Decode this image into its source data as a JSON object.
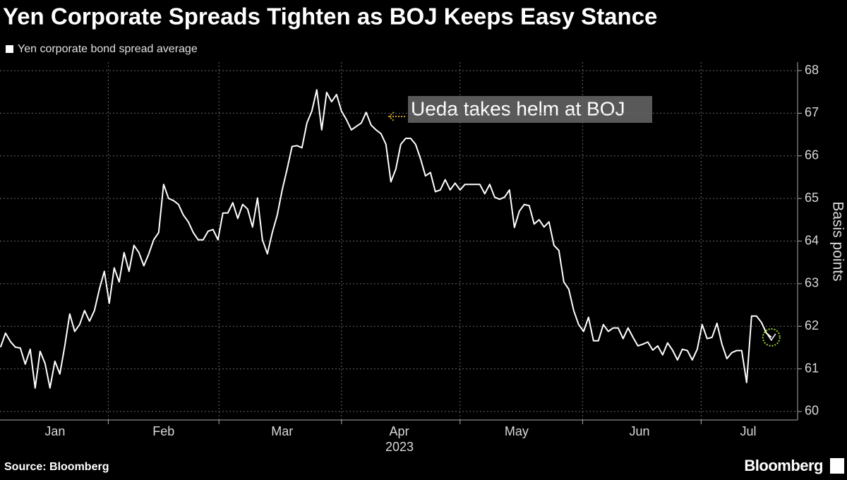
{
  "chart_data": {
    "type": "line",
    "title": "Yen Corporate Spreads Tighten as BOJ Keeps Easy Stance",
    "y_label": "Basis points",
    "x_label": "2023",
    "source": "Source: Bloomberg",
    "brand": "Bloomberg",
    "annotation": "Ueda takes helm at BOJ",
    "legend": "top-left",
    "grid": true,
    "xlim": [
      3.6,
      205.4
    ],
    "ylim": [
      59.8,
      68.2
    ],
    "yticks": [
      60,
      61,
      62,
      63,
      64,
      65,
      66,
      67,
      68
    ],
    "xticks": [
      {
        "value": 17.5,
        "label": "Jan"
      },
      {
        "value": 45,
        "label": "Feb"
      },
      {
        "value": 75,
        "label": "Mar"
      },
      {
        "value": 104.6,
        "label": "Apr"
      },
      {
        "value": 134.3,
        "label": "May"
      },
      {
        "value": 165.4,
        "label": "Jun"
      },
      {
        "value": 192.9,
        "label": "Jul"
      }
    ],
    "xgrid": [
      31,
      59,
      90,
      120,
      151,
      181
    ],
    "x": [
      3.75,
      5,
      6.25,
      7.5,
      8.75,
      10,
      11.25,
      12.5,
      13.75,
      15,
      16.25,
      17.5,
      18.75,
      20,
      21.25,
      22.5,
      23.75,
      25,
      26.25,
      27.5,
      28.75,
      30,
      31.25,
      32.5,
      33.75,
      35,
      36.25,
      37.5,
      38.75,
      40,
      41.25,
      42.5,
      43.75,
      45,
      46.25,
      47.5,
      48.75,
      50,
      51.25,
      52.5,
      53.75,
      55,
      56.25,
      57.5,
      58.75,
      60,
      61.25,
      62.5,
      63.75,
      65,
      66.25,
      67.5,
      68.75,
      70,
      71.25,
      72.5,
      73.75,
      75,
      76.25,
      77.5,
      78.75,
      80,
      81.25,
      82.5,
      83.75,
      85,
      86.25,
      87.5,
      88.75,
      90,
      91.25,
      92.5,
      93.75,
      95,
      96.25,
      97.5,
      98.75,
      100,
      101.25,
      102.5,
      103.75,
      105,
      106.25,
      107.5,
      108.75,
      110,
      111.25,
      112.5,
      113.75,
      115,
      116.25,
      117.5,
      118.75,
      120,
      121.25,
      122.5,
      123.75,
      125,
      126.25,
      127.5,
      128.75,
      130,
      131.25,
      132.5,
      133.75,
      135,
      136.25,
      137.5,
      138.75,
      140,
      141.25,
      142.5,
      143.75,
      145,
      146.25,
      147.5,
      148.75,
      150,
      151.25,
      152.5,
      153.75,
      155,
      156.25,
      157.5,
      158.75,
      160,
      161.25,
      162.5,
      163.75,
      165,
      166.25,
      167.5,
      168.75,
      170,
      171.25,
      172.5,
      173.75,
      175,
      176.25,
      177.5,
      178.75,
      180,
      181.25,
      182.5,
      183.75,
      185,
      186.25,
      187.5,
      188.75,
      190,
      191.25,
      192.5,
      193.75,
      195,
      196.25,
      197.5,
      198.75
    ],
    "series": [
      {
        "name": "Yen corporate bond spread average",
        "color": "#ffffff",
        "values": [
          61.51,
          61.84,
          61.64,
          61.51,
          61.49,
          61.11,
          61.46,
          60.55,
          61.41,
          61.13,
          60.55,
          61.18,
          60.88,
          61.54,
          62.29,
          61.88,
          62.04,
          62.37,
          62.12,
          62.37,
          62.87,
          63.29,
          62.54,
          63.37,
          63.04,
          63.73,
          63.29,
          63.9,
          63.73,
          63.42,
          63.7,
          64.03,
          64.2,
          65.33,
          65.0,
          64.95,
          64.86,
          64.61,
          64.45,
          64.2,
          64.03,
          64.03,
          64.23,
          64.27,
          64.03,
          64.66,
          64.66,
          64.9,
          64.53,
          64.86,
          64.75,
          64.33,
          65.01,
          64.03,
          63.7,
          64.2,
          64.61,
          65.2,
          65.69,
          66.22,
          66.24,
          66.19,
          66.77,
          67.05,
          67.55,
          66.61,
          67.49,
          67.27,
          67.44,
          67.05,
          66.85,
          66.61,
          66.69,
          66.77,
          67.02,
          66.72,
          66.61,
          66.52,
          66.27,
          65.39,
          65.69,
          66.27,
          66.41,
          66.41,
          66.27,
          65.93,
          65.53,
          65.61,
          65.16,
          65.2,
          65.44,
          65.2,
          65.36,
          65.2,
          65.33,
          65.33,
          65.33,
          65.33,
          65.11,
          65.33,
          65.03,
          64.98,
          65.03,
          65.2,
          64.32,
          64.7,
          64.86,
          64.83,
          64.4,
          64.5,
          64.33,
          64.45,
          63.9,
          63.78,
          63.04,
          62.87,
          62.37,
          62.04,
          61.88,
          62.21,
          61.66,
          61.66,
          62.04,
          61.88,
          61.96,
          61.96,
          61.71,
          61.96,
          61.74,
          61.54,
          61.58,
          61.63,
          61.44,
          61.54,
          61.33,
          61.61,
          61.44,
          61.21,
          61.46,
          61.43,
          61.21,
          61.46,
          62.04,
          61.71,
          61.74,
          62.07,
          61.58,
          61.24,
          61.38,
          61.43,
          61.43,
          60.68,
          62.24,
          62.24,
          62.09,
          61.84,
          61.74
        ]
      }
    ]
  }
}
